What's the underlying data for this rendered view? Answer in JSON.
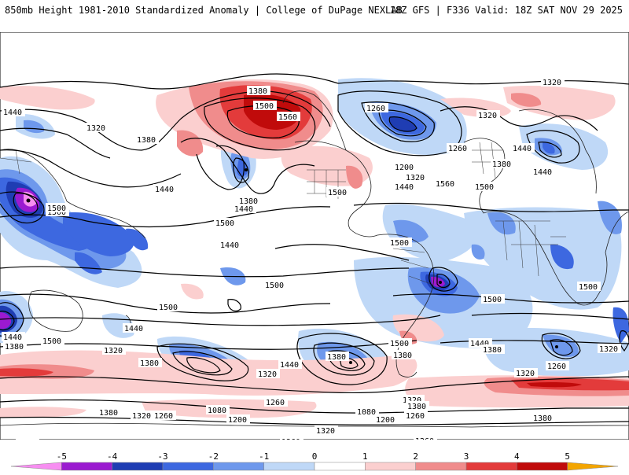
{
  "header": {
    "title_left": "850mb Height 1981-2010 Standardized Anomaly | College of DuPage NEXLAB",
    "title_right": "18Z GFS | F336 Valid: 18Z SAT NOV 29 2025"
  },
  "contour_labels": [
    "1380",
    "1320",
    "1440",
    "1320",
    "1380",
    "1500",
    "1560",
    "1440",
    "1500",
    "1380",
    "1440",
    "1500",
    "1500",
    "1260",
    "1320",
    "1260",
    "1200",
    "1320",
    "1440",
    "1560",
    "1500",
    "1380",
    "1440",
    "1440",
    "1440",
    "1500",
    "1500",
    "1500",
    "1500",
    "1500",
    "1500",
    "1440",
    "1380",
    "1440",
    "1500",
    "1320",
    "1380",
    "1440",
    "1380",
    "1320",
    "1260",
    "1080",
    "1200",
    "1380",
    "1320",
    "1260",
    "1380",
    "1080",
    "1200",
    "1260",
    "1320",
    "1380",
    "1320",
    "1440",
    "1380",
    "1320",
    "1260",
    "1500",
    "1380",
    "1320",
    "1260",
    "1320",
    "1380",
    "1320",
    "1260",
    "1320"
  ],
  "legend": {
    "ticks": [
      "-5",
      "-4",
      "-3",
      "-2",
      "-1",
      "0",
      "1",
      "2",
      "3",
      "4",
      "5"
    ],
    "colors": [
      "#f78ef1",
      "#9b1ad0",
      "#1f3db3",
      "#3d68e0",
      "#6e98ec",
      "#bfd8f7",
      "#ffffff",
      "#fbcfcf",
      "#f08c8c",
      "#e33b3b",
      "#c00b0b",
      "#f3a500"
    ]
  },
  "colors": {
    "contour": "#000000",
    "coastline": "#222222",
    "border": "#333333"
  }
}
